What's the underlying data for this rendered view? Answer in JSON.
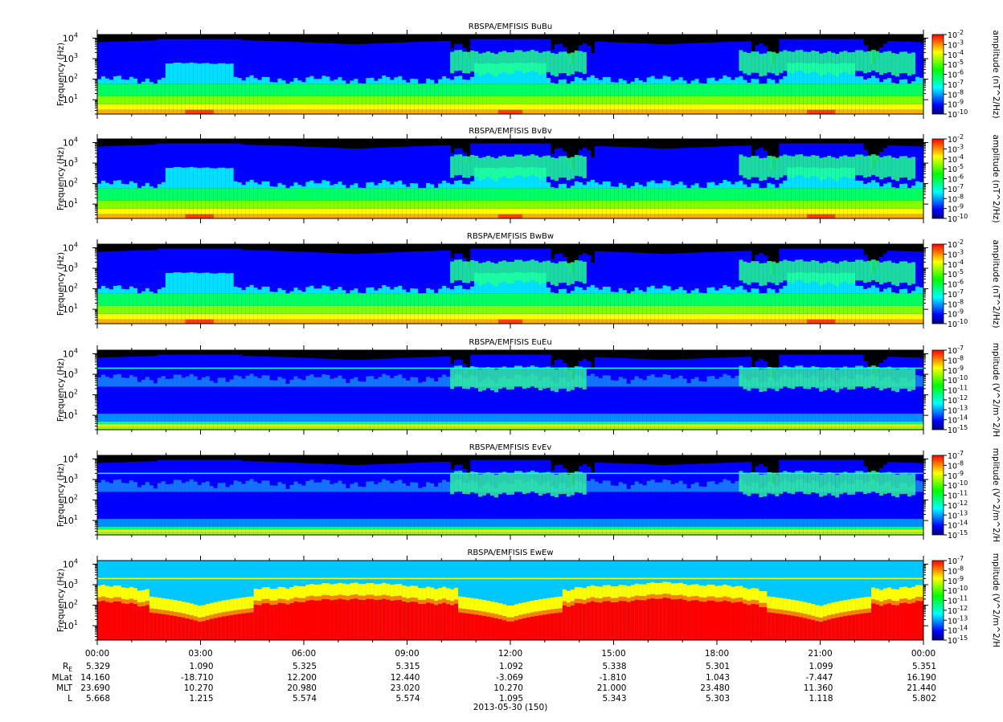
{
  "chart_data": {
    "type": "heatmap",
    "date_label": "2013-05-30 (150)",
    "y_axis_label": "Frequency (Hz)",
    "y_scale": "log",
    "y_range_hz": [
      2,
      15000
    ],
    "y_ticks": [
      {
        "value": 10,
        "base": "10",
        "exp": "1"
      },
      {
        "value": 100,
        "base": "10",
        "exp": "2"
      },
      {
        "value": 1000,
        "base": "10",
        "exp": "3"
      },
      {
        "value": 10000,
        "base": "10",
        "exp": "4"
      }
    ],
    "x_range_hours": [
      0,
      24
    ],
    "x_tick_labels": [
      "00:00",
      "03:00",
      "06:00",
      "09:00",
      "12:00",
      "15:00",
      "18:00",
      "21:00",
      "00:00"
    ],
    "colormap": [
      "#00007a",
      "#0000ff",
      "#0080ff",
      "#00ffff",
      "#00ff80",
      "#00ff00",
      "#80ff00",
      "#ffff00",
      "#ff8000",
      "#ff0000"
    ],
    "panels": [
      {
        "title": "RBSPA/EMFISIS  BuBu",
        "colorbar_label": "amplitude (nT^2/Hz)",
        "colorbar_ticks": [
          {
            "base": "10",
            "exp": "-2"
          },
          {
            "base": "10",
            "exp": "-3"
          },
          {
            "base": "10",
            "exp": "-4"
          },
          {
            "base": "10",
            "exp": "-5"
          },
          {
            "base": "10",
            "exp": "-6"
          },
          {
            "base": "10",
            "exp": "-7"
          },
          {
            "base": "10",
            "exp": "-8"
          },
          {
            "base": "10",
            "exp": "-9"
          },
          {
            "base": "10",
            "exp": "-10"
          }
        ]
      },
      {
        "title": "RBSPA/EMFISIS  BvBv",
        "colorbar_label": "amplitude (nT^2/Hz)",
        "colorbar_ticks": [
          {
            "base": "10",
            "exp": "-2"
          },
          {
            "base": "10",
            "exp": "-3"
          },
          {
            "base": "10",
            "exp": "-4"
          },
          {
            "base": "10",
            "exp": "-5"
          },
          {
            "base": "10",
            "exp": "-6"
          },
          {
            "base": "10",
            "exp": "-7"
          },
          {
            "base": "10",
            "exp": "-8"
          },
          {
            "base": "10",
            "exp": "-9"
          },
          {
            "base": "10",
            "exp": "-10"
          }
        ]
      },
      {
        "title": "RBSPA/EMFISIS  BwBw",
        "colorbar_label": "amplitude (nT^2/Hz)",
        "colorbar_ticks": [
          {
            "base": "10",
            "exp": "-2"
          },
          {
            "base": "10",
            "exp": "-3"
          },
          {
            "base": "10",
            "exp": "-4"
          },
          {
            "base": "10",
            "exp": "-5"
          },
          {
            "base": "10",
            "exp": "-6"
          },
          {
            "base": "10",
            "exp": "-7"
          },
          {
            "base": "10",
            "exp": "-8"
          },
          {
            "base": "10",
            "exp": "-9"
          },
          {
            "base": "10",
            "exp": "-10"
          }
        ]
      },
      {
        "title": "RBSPA/EMFISIS  EuEu",
        "colorbar_label": "mplitude (V^2/m^2/H",
        "colorbar_ticks": [
          {
            "base": "10",
            "exp": "-7"
          },
          {
            "base": "10",
            "exp": "-8"
          },
          {
            "base": "10",
            "exp": "-9"
          },
          {
            "base": "10",
            "exp": "-10"
          },
          {
            "base": "10",
            "exp": "-11"
          },
          {
            "base": "10",
            "exp": "-12"
          },
          {
            "base": "10",
            "exp": "-13"
          },
          {
            "base": "10",
            "exp": "-14"
          },
          {
            "base": "10",
            "exp": "-15"
          }
        ]
      },
      {
        "title": "RBSPA/EMFISIS  EvEv",
        "colorbar_label": "mplitude (V^2/m^2/H",
        "colorbar_ticks": [
          {
            "base": "10",
            "exp": "-7"
          },
          {
            "base": "10",
            "exp": "-8"
          },
          {
            "base": "10",
            "exp": "-9"
          },
          {
            "base": "10",
            "exp": "-10"
          },
          {
            "base": "10",
            "exp": "-11"
          },
          {
            "base": "10",
            "exp": "-12"
          },
          {
            "base": "10",
            "exp": "-13"
          },
          {
            "base": "10",
            "exp": "-14"
          },
          {
            "base": "10",
            "exp": "-15"
          }
        ]
      },
      {
        "title": "RBSPA/EMFISIS  EwEw",
        "colorbar_label": "mplitude (V^2/m^2/H",
        "colorbar_ticks": [
          {
            "base": "10",
            "exp": "-7"
          },
          {
            "base": "10",
            "exp": "-8"
          },
          {
            "base": "10",
            "exp": "-9"
          },
          {
            "base": "10",
            "exp": "-10"
          },
          {
            "base": "10",
            "exp": "-11"
          },
          {
            "base": "10",
            "exp": "-12"
          },
          {
            "base": "10",
            "exp": "-13"
          },
          {
            "base": "10",
            "exp": "-14"
          },
          {
            "base": "10",
            "exp": "-15"
          }
        ]
      }
    ],
    "ephemeris": [
      {
        "name": "R",
        "sub": "E",
        "values": [
          "5.329",
          "1.090",
          "5.325",
          "5.315",
          "1.092",
          "5.338",
          "5.301",
          "1.099",
          "5.351"
        ]
      },
      {
        "name": "MLat",
        "sub": "",
        "values": [
          "14.160",
          "-18.710",
          "12.200",
          "12.440",
          "-3.069",
          "-1.810",
          "1.043",
          "-7.447",
          "16.190"
        ]
      },
      {
        "name": "MLT",
        "sub": "",
        "values": [
          "23.690",
          "10.270",
          "20.980",
          "23.020",
          "10.270",
          "21.000",
          "23.480",
          "11.360",
          "21.440"
        ]
      },
      {
        "name": "L",
        "sub": "",
        "values": [
          "5.668",
          "1.215",
          "5.574",
          "5.574",
          "1.095",
          "5.343",
          "5.303",
          "1.118",
          "5.802"
        ]
      }
    ]
  }
}
